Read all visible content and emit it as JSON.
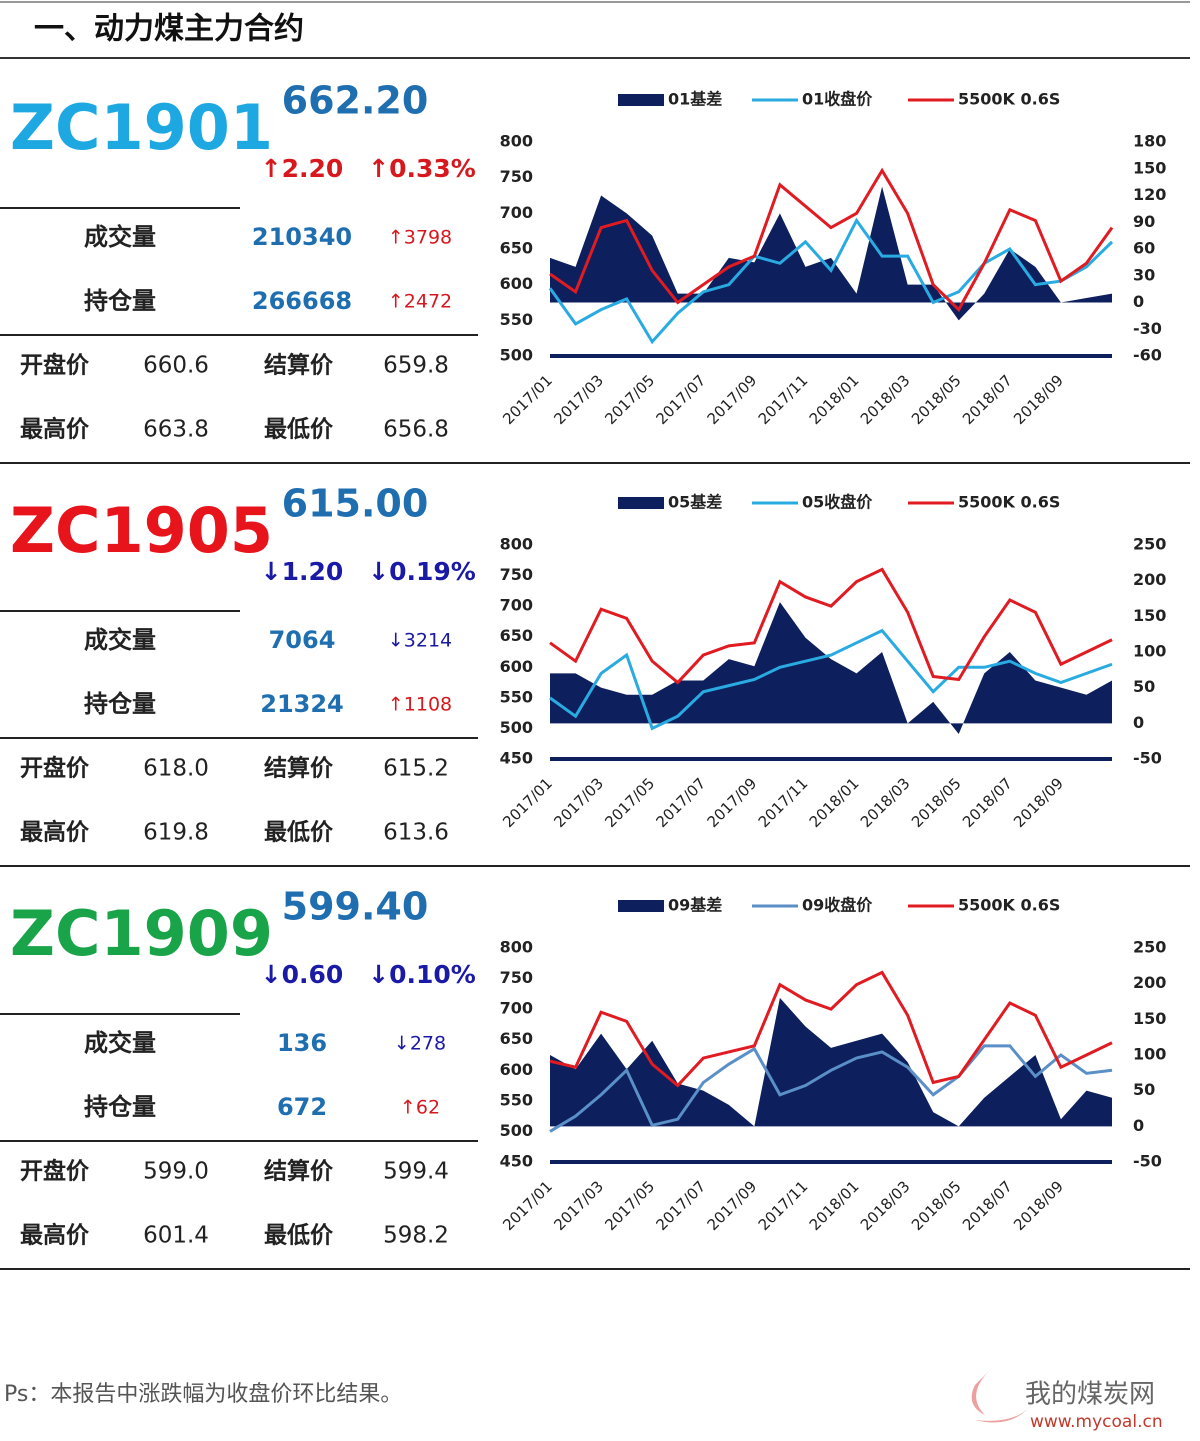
{
  "header": {
    "title": "一、动力煤主力合约"
  },
  "labels": {
    "volume": "成交量",
    "oi": "持仓量",
    "open": "开盘价",
    "settle": "结算价",
    "high": "最高价",
    "low": "最低价"
  },
  "panels": [
    {
      "contract": "ZC1901",
      "color": "#1ea8e2",
      "price": "662.20",
      "change": "↑2.20",
      "change_pct": "↑0.33%",
      "direction": "up",
      "volume": "210340",
      "volume_change": "↑3798",
      "volume_dir": "up",
      "oi": "266668",
      "oi_change": "↑2472",
      "oi_dir": "up",
      "open": "660.6",
      "settle": "659.8",
      "high": "663.8",
      "low": "656.8"
    },
    {
      "contract": "ZC1905",
      "color": "#e8141b",
      "price": "615.00",
      "change": "↓1.20",
      "change_pct": "↓0.19%",
      "direction": "down",
      "volume": "7064",
      "volume_change": "↓3214",
      "volume_dir": "down",
      "oi": "21324",
      "oi_change": "↑1108",
      "oi_dir": "up",
      "open": "618.0",
      "settle": "615.2",
      "high": "619.8",
      "low": "613.6"
    },
    {
      "contract": "ZC1909",
      "color": "#1aa44a",
      "price": "599.40",
      "change": "↓0.60",
      "change_pct": "↓0.10%",
      "direction": "down",
      "volume": "136",
      "volume_change": "↓278",
      "volume_dir": "down",
      "oi": "672",
      "oi_change": "↑62",
      "oi_dir": "up",
      "open": "599.0",
      "settle": "599.4",
      "high": "601.4",
      "low": "598.2"
    }
  ],
  "chart_data": [
    {
      "type": "line",
      "categories": [
        "2017/01",
        null,
        "2017/03",
        null,
        "2017/05",
        null,
        "2017/07",
        null,
        "2017/09",
        null,
        "2017/11",
        null,
        "2018/01",
        null,
        "2018/03",
        null,
        "2018/05",
        null,
        "2018/07",
        null,
        "2018/09",
        null,
        null
      ],
      "ylim": [
        500,
        800
      ],
      "yticks": [
        500,
        550,
        600,
        650,
        700,
        750,
        800
      ],
      "y2lim": [
        -60,
        180
      ],
      "y2ticks": [
        -60,
        -30,
        0,
        30,
        60,
        90,
        120,
        150,
        180
      ],
      "series": [
        {
          "name": "01基差",
          "type": "area",
          "axis": "y2",
          "color": "#0d1f5c",
          "values": [
            50,
            40,
            120,
            100,
            75,
            10,
            10,
            50,
            45,
            100,
            40,
            50,
            10,
            130,
            20,
            20,
            -20,
            10,
            60,
            40,
            0,
            5,
            10
          ]
        },
        {
          "name": "01收盘价",
          "color": "#29abe2",
          "values": [
            595,
            545,
            565,
            580,
            520,
            560,
            590,
            600,
            640,
            630,
            660,
            620,
            690,
            640,
            640,
            575,
            590,
            630,
            650,
            600,
            605,
            625,
            660
          ]
        },
        {
          "name": "5500K 0.6S",
          "color": "#e01b22",
          "values": [
            615,
            590,
            680,
            690,
            620,
            575,
            600,
            625,
            640,
            740,
            710,
            680,
            700,
            760,
            700,
            600,
            565,
            630,
            705,
            690,
            605,
            630,
            680
          ]
        }
      ]
    },
    {
      "type": "line",
      "categories": [
        "2017/01",
        null,
        "2017/03",
        null,
        "2017/05",
        null,
        "2017/07",
        null,
        "2017/09",
        null,
        "2017/11",
        null,
        "2018/01",
        null,
        "2018/03",
        null,
        "2018/05",
        null,
        "2018/07",
        null,
        "2018/09",
        null,
        null
      ],
      "ylim": [
        450,
        800
      ],
      "yticks": [
        450,
        500,
        550,
        600,
        650,
        700,
        750,
        800
      ],
      "y2lim": [
        -50,
        250
      ],
      "y2ticks": [
        -50,
        0,
        50,
        100,
        150,
        200,
        250
      ],
      "series": [
        {
          "name": "05基差",
          "type": "area",
          "axis": "y2",
          "color": "#0d1f5c",
          "values": [
            70,
            70,
            50,
            40,
            40,
            60,
            60,
            90,
            80,
            170,
            120,
            90,
            70,
            100,
            0,
            30,
            -15,
            70,
            100,
            60,
            50,
            40,
            60
          ]
        },
        {
          "name": "05收盘价",
          "color": "#29abe2",
          "values": [
            550,
            520,
            590,
            620,
            500,
            520,
            560,
            570,
            580,
            600,
            610,
            620,
            640,
            660,
            610,
            560,
            600,
            600,
            610,
            590,
            575,
            590,
            605
          ]
        },
        {
          "name": "5500K 0.6S",
          "color": "#e01b22",
          "values": [
            640,
            610,
            695,
            680,
            610,
            575,
            620,
            635,
            640,
            740,
            715,
            700,
            740,
            760,
            690,
            585,
            580,
            650,
            710,
            690,
            605,
            625,
            645
          ]
        }
      ]
    },
    {
      "type": "line",
      "categories": [
        "2017/01",
        null,
        "2017/03",
        null,
        "2017/05",
        null,
        "2017/07",
        null,
        "2017/09",
        null,
        "2017/11",
        null,
        "2018/01",
        null,
        "2018/03",
        null,
        "2018/05",
        null,
        "2018/07",
        null,
        "2018/09",
        null,
        null
      ],
      "ylim": [
        450,
        800
      ],
      "yticks": [
        450,
        500,
        550,
        600,
        650,
        700,
        750,
        800
      ],
      "y2lim": [
        -50,
        250
      ],
      "y2ticks": [
        -50,
        0,
        50,
        100,
        150,
        200,
        250
      ],
      "series": [
        {
          "name": "09基差",
          "type": "area",
          "axis": "y2",
          "color": "#0d1f5c",
          "values": [
            100,
            80,
            130,
            80,
            120,
            60,
            50,
            30,
            0,
            180,
            140,
            110,
            120,
            130,
            90,
            20,
            0,
            40,
            70,
            100,
            10,
            50,
            40
          ]
        },
        {
          "name": "09收盘价",
          "color": "#5b8fc7",
          "values": [
            500,
            525,
            560,
            600,
            510,
            520,
            580,
            610,
            635,
            560,
            575,
            600,
            620,
            630,
            605,
            560,
            590,
            640,
            640,
            590,
            625,
            595,
            600
          ]
        },
        {
          "name": "5500K 0.6S",
          "color": "#e01b22",
          "values": [
            615,
            605,
            695,
            680,
            610,
            575,
            620,
            630,
            640,
            740,
            715,
            700,
            740,
            760,
            690,
            580,
            590,
            650,
            710,
            690,
            605,
            625,
            645
          ]
        }
      ]
    }
  ],
  "footer": {
    "note": "Ps：本报告中涨跌幅为收盘价环比结果。",
    "logo": "我的煤炭网",
    "url": "www.mycoal.cn"
  }
}
